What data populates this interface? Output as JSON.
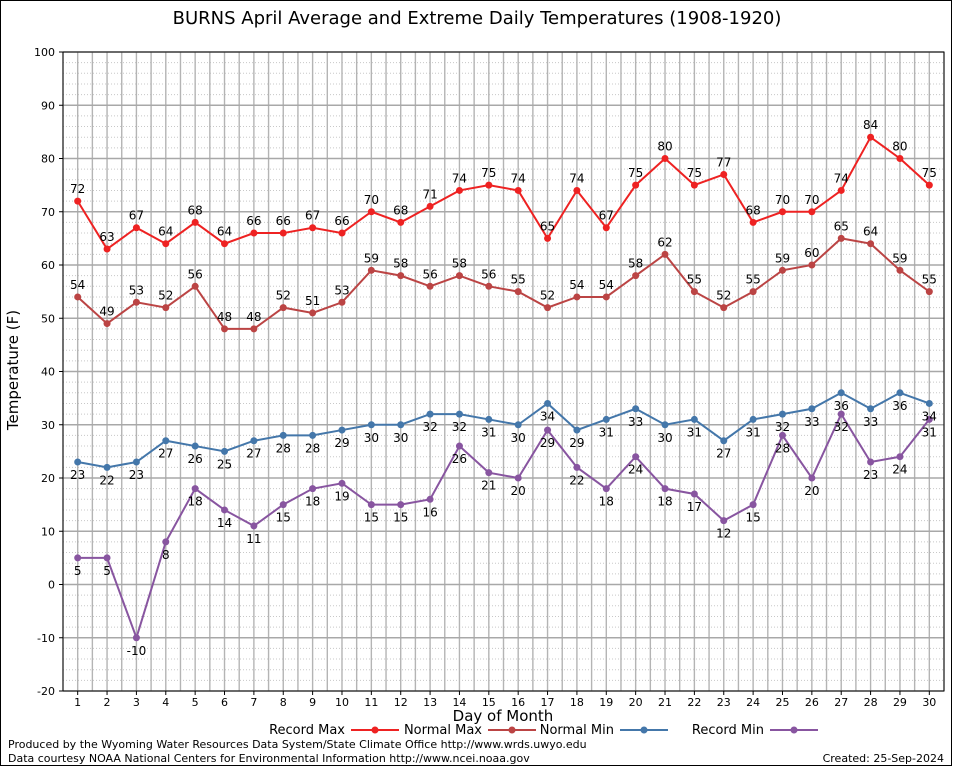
{
  "chart_data": {
    "type": "line",
    "title": "BURNS April Average and Extreme Daily Temperatures (1908-1920)",
    "xlabel": "Day of Month",
    "ylabel": "Temperature (F)",
    "x": [
      1,
      2,
      3,
      4,
      5,
      6,
      7,
      8,
      9,
      10,
      11,
      12,
      13,
      14,
      15,
      16,
      17,
      18,
      19,
      20,
      21,
      22,
      23,
      24,
      25,
      26,
      27,
      28,
      29,
      30
    ],
    "xlim": [
      0.5,
      30.5
    ],
    "ylim": [
      -20,
      100
    ],
    "yticks": [
      -20,
      -10,
      0,
      10,
      20,
      30,
      40,
      50,
      60,
      70,
      80,
      90,
      100
    ],
    "grid": true,
    "legend_position": "bottom",
    "series": [
      {
        "name": "Record Max",
        "color": "#ee2222",
        "label_position": "above",
        "values": [
          72,
          63,
          67,
          64,
          68,
          64,
          66,
          66,
          67,
          66,
          70,
          68,
          71,
          74,
          75,
          74,
          65,
          74,
          67,
          75,
          80,
          75,
          77,
          68,
          70,
          70,
          74,
          84,
          80,
          75
        ]
      },
      {
        "name": "Normal Max",
        "color": "#bb4444",
        "label_position": "above",
        "values": [
          54,
          49,
          53,
          52,
          56,
          48,
          48,
          52,
          51,
          53,
          59,
          58,
          56,
          58,
          56,
          55,
          52,
          54,
          54,
          58,
          62,
          55,
          52,
          55,
          59,
          60,
          65,
          64,
          59,
          55
        ]
      },
      {
        "name": "Normal Min",
        "color": "#4477aa",
        "label_position": "below",
        "values": [
          23,
          22,
          23,
          27,
          26,
          25,
          27,
          28,
          28,
          29,
          30,
          30,
          32,
          32,
          31,
          30,
          34,
          29,
          31,
          33,
          30,
          31,
          27,
          31,
          32,
          33,
          36,
          33,
          36,
          34
        ]
      },
      {
        "name": "Record Min",
        "color": "#8855a0",
        "label_position": "below",
        "values": [
          5,
          5,
          -10,
          8,
          18,
          14,
          11,
          15,
          18,
          19,
          15,
          15,
          16,
          26,
          21,
          20,
          29,
          22,
          18,
          24,
          18,
          17,
          12,
          15,
          28,
          20,
          32,
          23,
          24,
          31
        ]
      }
    ]
  },
  "footer": {
    "produced": "Produced by the Wyoming Water Resources Data System/State Climate Office http://www.wrds.uwyo.edu",
    "courtesy": "Data courtesy NOAA National Centers for Environmental Information http://www.ncei.noaa.gov",
    "created": "Created:  25-Sep-2024"
  }
}
